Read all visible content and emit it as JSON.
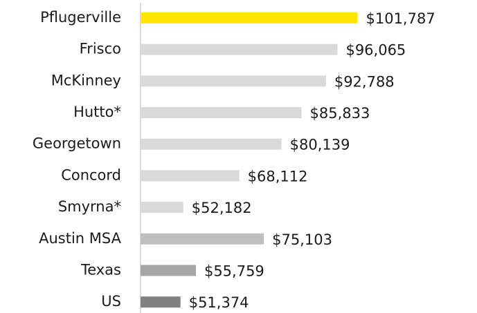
{
  "chart_data": {
    "type": "bar",
    "orientation": "horizontal",
    "categories": [
      "Pflugerville",
      "Frisco",
      "McKinney",
      "Hutto*",
      "Georgetown",
      "Concord",
      "Smyrna*",
      "Austin MSA",
      "Texas",
      "US"
    ],
    "values": [
      101787,
      96065,
      92788,
      85833,
      80139,
      68112,
      52182,
      75103,
      55759,
      51374
    ],
    "value_labels": [
      "$101,787",
      "$96,065",
      "$92,788",
      "$85,833",
      "$80,139",
      "$68,112",
      "$52,182",
      "$75,103",
      "$55,759",
      "$51,374"
    ],
    "colors": [
      "#ffe600",
      "#d9d9d9",
      "#d9d9d9",
      "#d9d9d9",
      "#d9d9d9",
      "#d9d9d9",
      "#d9d9d9",
      "#bfbfbf",
      "#a6a6a6",
      "#808080"
    ],
    "xlim": [
      40000,
      135000
    ]
  }
}
